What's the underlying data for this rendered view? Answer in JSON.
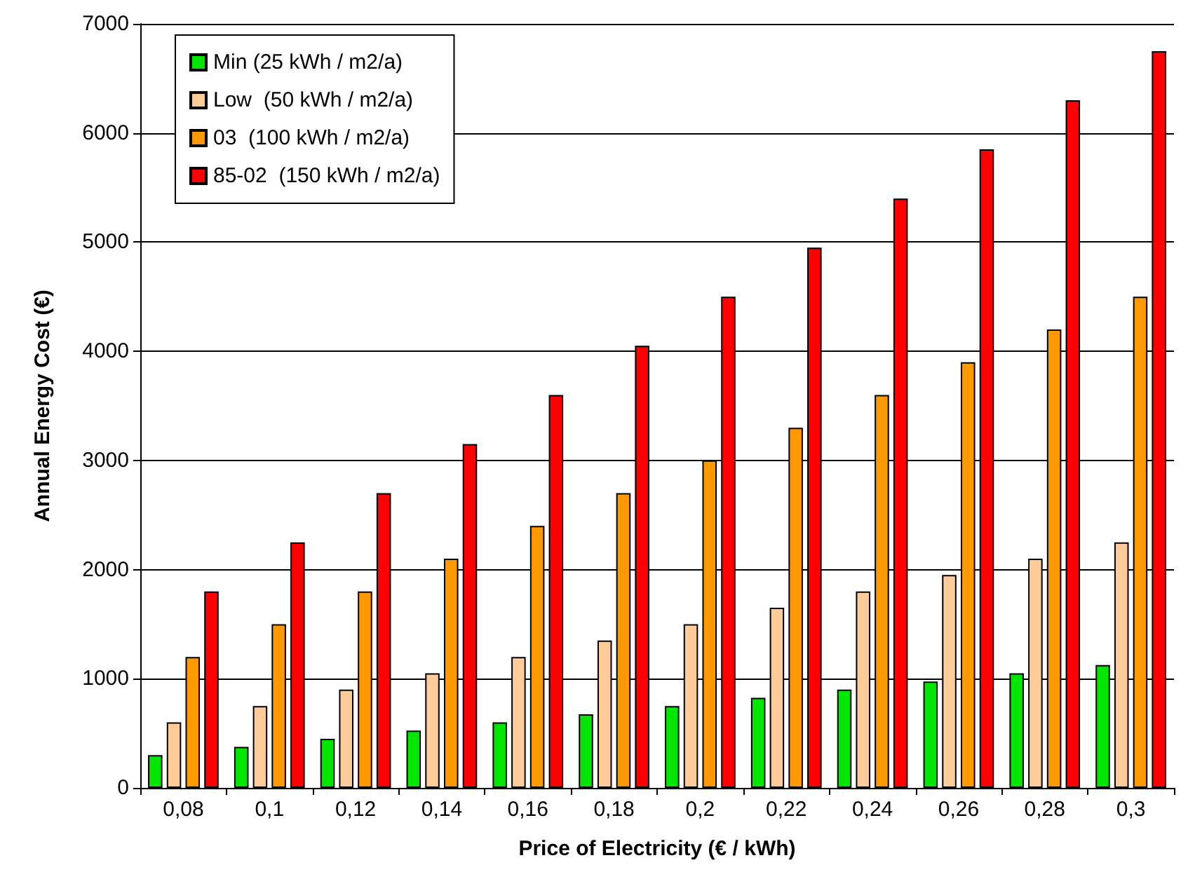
{
  "chart_data": {
    "type": "bar",
    "xlabel": "Price of Electricity (€ / kWh)",
    "ylabel": "Annual Energy Cost (€)",
    "categories": [
      "0,08",
      "0,1",
      "0,12",
      "0,14",
      "0,16",
      "0,18",
      "0,2",
      "0,22",
      "0,24",
      "0,26",
      "0,28",
      "0,3"
    ],
    "series": [
      {
        "name": "Min (25 kWh / m2/a)",
        "color": "#00e600",
        "values": [
          300,
          375,
          450,
          525,
          600,
          675,
          750,
          825,
          900,
          975,
          1050,
          1125
        ]
      },
      {
        "name": "Low  (50 kWh / m2/a)",
        "color": "#ffcc99",
        "values": [
          600,
          750,
          900,
          1050,
          1200,
          1350,
          1500,
          1650,
          1800,
          1950,
          2100,
          2250
        ]
      },
      {
        "name": "03  (100 kWh / m2/a)",
        "color": "#ff9900",
        "values": [
          1200,
          1500,
          1800,
          2100,
          2400,
          2700,
          3000,
          3300,
          3600,
          3900,
          4200,
          4500
        ]
      },
      {
        "name": "85-02  (150 kWh / m2/a)",
        "color": "#ff0000",
        "values": [
          1800,
          2250,
          2700,
          3150,
          3600,
          4050,
          4500,
          4950,
          5400,
          5850,
          6300,
          6750
        ]
      }
    ],
    "ylim": [
      0,
      7000
    ],
    "yticks": [
      0,
      1000,
      2000,
      3000,
      4000,
      5000,
      6000,
      7000
    ],
    "grid": "y",
    "legend": "top left"
  }
}
